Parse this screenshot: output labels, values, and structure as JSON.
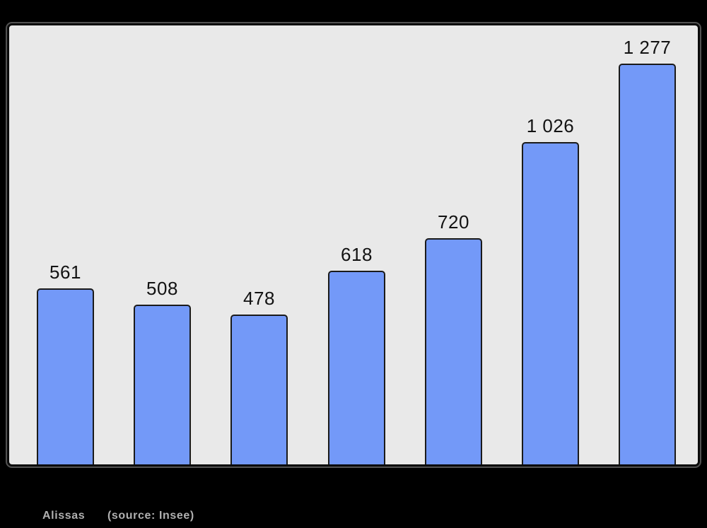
{
  "chart_data": {
    "type": "bar",
    "title": "",
    "values": [
      561,
      508,
      478,
      618,
      720,
      1026,
      1277
    ],
    "value_labels": [
      "561",
      "508",
      "478",
      "618",
      "720",
      "1 026",
      "1 277"
    ],
    "ylim": [
      0,
      1277
    ],
    "grid": "off",
    "legend": "none",
    "axis_tick_labels": "none",
    "bar_color": "#7399F8",
    "bar_border_color": "#1A1A1A",
    "value_label_color": "#121212",
    "plot_background": "#E9E9E9",
    "page_background": "#000000"
  },
  "caption": {
    "name": "Alissas",
    "source": "(source: Insee)",
    "color": "#B0B0B0"
  }
}
